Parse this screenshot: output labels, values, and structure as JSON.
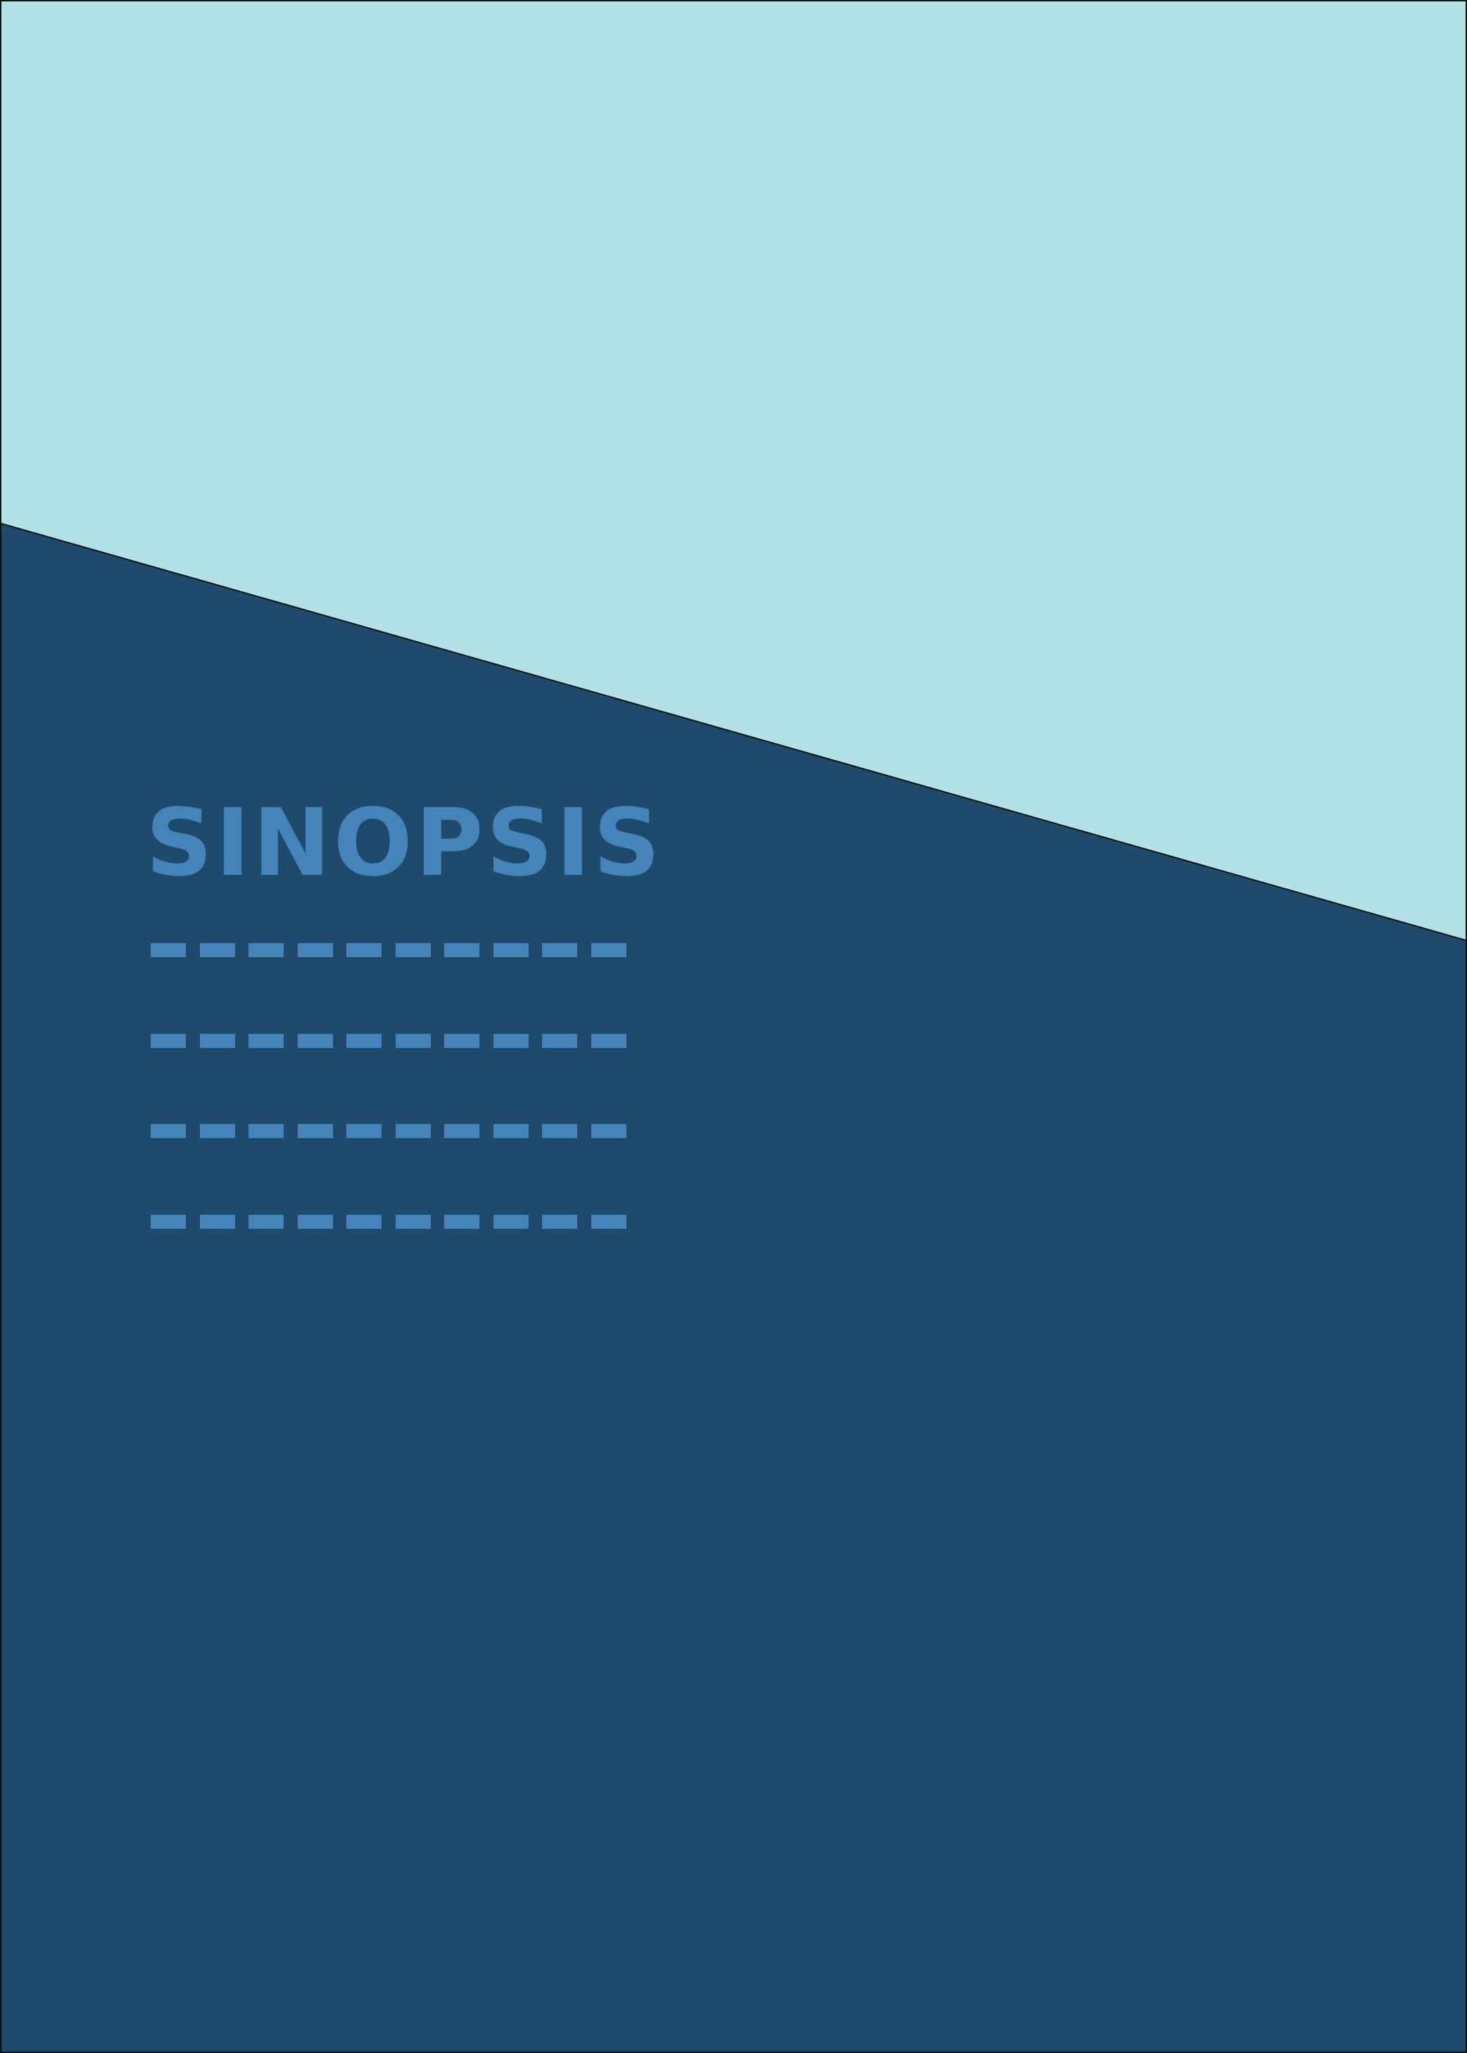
{
  "document": {
    "heading": "SINOPSIS"
  },
  "colors": {
    "top_panel": "#b2e1e6",
    "bottom_panel": "#204a6b",
    "accent": "#4583bb",
    "border": "#111111"
  },
  "placeholder_lines": {
    "count": 4,
    "dashes_per_line": 10
  }
}
